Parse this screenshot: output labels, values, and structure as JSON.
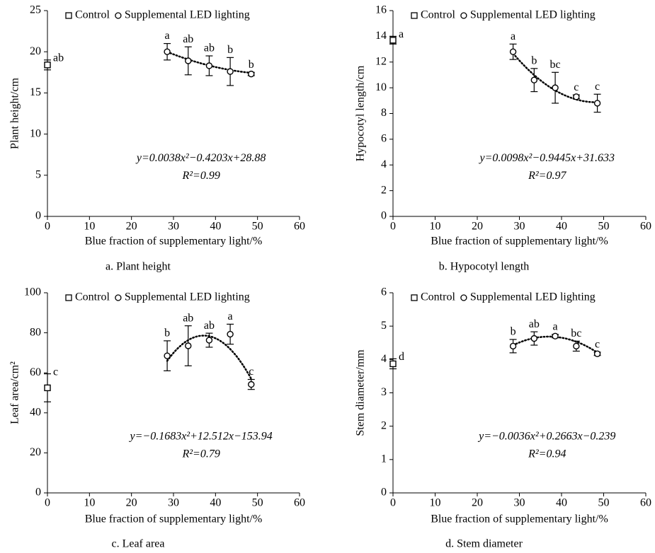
{
  "chart_data": [
    {
      "type": "scatter",
      "caption": "a. Plant height",
      "xlabel": "Blue fraction of supplementary light/%",
      "ylabel": "Plant height/cm",
      "xlim": [
        0,
        60
      ],
      "xticks": [
        0,
        10,
        20,
        30,
        40,
        50,
        60
      ],
      "ylim": [
        0,
        25
      ],
      "yticks": [
        0,
        5,
        10,
        15,
        20,
        25
      ],
      "series": [
        {
          "name": "Control",
          "marker": "square",
          "color": "#000000",
          "x": [
            0
          ],
          "values": [
            18.4
          ],
          "errors": [
            0.6
          ],
          "labels": [
            "ab"
          ]
        },
        {
          "name": "Supplemental LED lighting",
          "marker": "circle",
          "color": "#000000",
          "x": [
            28.5,
            33.5,
            38.5,
            43.5,
            48.5
          ],
          "values": [
            20.0,
            18.9,
            18.3,
            17.6,
            17.3
          ],
          "errors": [
            1.0,
            1.7,
            1.2,
            1.7,
            0.2
          ],
          "labels": [
            "a",
            "ab",
            "ab",
            "b",
            "b"
          ]
        }
      ],
      "fit": {
        "equation": "y=0.0038x²−0.4203x+28.88",
        "r_squared_label": "R²=0.99",
        "coefficients": [
          0.0038,
          -0.4203,
          28.88
        ]
      }
    },
    {
      "type": "scatter",
      "caption": "b. Hypocotyl length",
      "xlabel": "Blue fraction of supplementary light/%",
      "ylabel": "Hypocotyl length/cm",
      "xlim": [
        0,
        60
      ],
      "xticks": [
        0,
        10,
        20,
        30,
        40,
        50,
        60
      ],
      "ylim": [
        0,
        16
      ],
      "yticks": [
        0,
        2,
        4,
        6,
        8,
        10,
        12,
        14,
        16
      ],
      "series": [
        {
          "name": "Control",
          "marker": "square",
          "color": "#000000",
          "x": [
            0
          ],
          "values": [
            13.7
          ],
          "errors": [
            0.3
          ],
          "labels": [
            "a"
          ]
        },
        {
          "name": "Supplemental LED lighting",
          "marker": "circle",
          "color": "#000000",
          "x": [
            28.5,
            33.5,
            38.5,
            43.5,
            48.5
          ],
          "values": [
            12.8,
            10.6,
            10.0,
            9.3,
            8.8
          ],
          "errors": [
            0.6,
            0.9,
            1.2,
            0.15,
            0.7
          ],
          "labels": [
            "a",
            "b",
            "bc",
            "c",
            "c"
          ]
        }
      ],
      "fit": {
        "equation": "y=0.0098x²−0.9445x+31.633",
        "r_squared_label": "R²=0.97",
        "coefficients": [
          0.0098,
          -0.9445,
          31.633
        ]
      }
    },
    {
      "type": "scatter",
      "caption": "c. Leaf area",
      "xlabel": "Blue fraction of supplementary light/%",
      "ylabel": "Leaf area/cm²",
      "xlim": [
        0,
        60
      ],
      "xticks": [
        0,
        10,
        20,
        30,
        40,
        50,
        60
      ],
      "ylim": [
        0,
        100
      ],
      "yticks": [
        0,
        20,
        40,
        60,
        80,
        100
      ],
      "series": [
        {
          "name": "Control",
          "marker": "square",
          "color": "#000000",
          "x": [
            0
          ],
          "values": [
            52.5
          ],
          "errors": [
            7
          ],
          "labels": [
            "c"
          ]
        },
        {
          "name": "Supplemental LED lighting",
          "marker": "circle",
          "color": "#000000",
          "x": [
            28.5,
            33.5,
            38.5,
            43.5,
            48.5
          ],
          "values": [
            68.5,
            73.5,
            76.3,
            79.3,
            54.2
          ],
          "errors": [
            7.5,
            10,
            3.5,
            5,
            2.5
          ],
          "labels": [
            "b",
            "ab",
            "ab",
            "a",
            "c"
          ]
        }
      ],
      "fit": {
        "equation": "y=−0.1683x²+12.512x−153.94",
        "r_squared_label": "R²=0.79",
        "coefficients": [
          -0.1683,
          12.512,
          -153.94
        ]
      }
    },
    {
      "type": "scatter",
      "caption": "d. Stem diameter",
      "xlabel": "Blue fraction of supplementary light/%",
      "ylabel": "Stem diameter/mm",
      "xlim": [
        0,
        60
      ],
      "xticks": [
        0,
        10,
        20,
        30,
        40,
        50,
        60
      ],
      "ylim": [
        0,
        6
      ],
      "yticks": [
        0,
        1,
        2,
        3,
        4,
        5,
        6
      ],
      "series": [
        {
          "name": "Control",
          "marker": "square",
          "color": "#000000",
          "x": [
            0
          ],
          "values": [
            3.87
          ],
          "errors": [
            0.15
          ],
          "labels": [
            "d"
          ]
        },
        {
          "name": "Supplemental LED lighting",
          "marker": "circle",
          "color": "#000000",
          "x": [
            28.5,
            33.5,
            38.5,
            43.5,
            48.5
          ],
          "values": [
            4.4,
            4.63,
            4.7,
            4.4,
            4.17
          ],
          "errors": [
            0.2,
            0.2,
            0.05,
            0.15,
            0.05
          ],
          "labels": [
            "b",
            "ab",
            "a",
            "bc",
            "c"
          ]
        }
      ],
      "fit": {
        "equation": "y=−0.0036x²+0.2663x−0.239",
        "r_squared_label": "R²=0.94",
        "coefficients": [
          -0.0036,
          0.2663,
          -0.239
        ]
      }
    }
  ]
}
